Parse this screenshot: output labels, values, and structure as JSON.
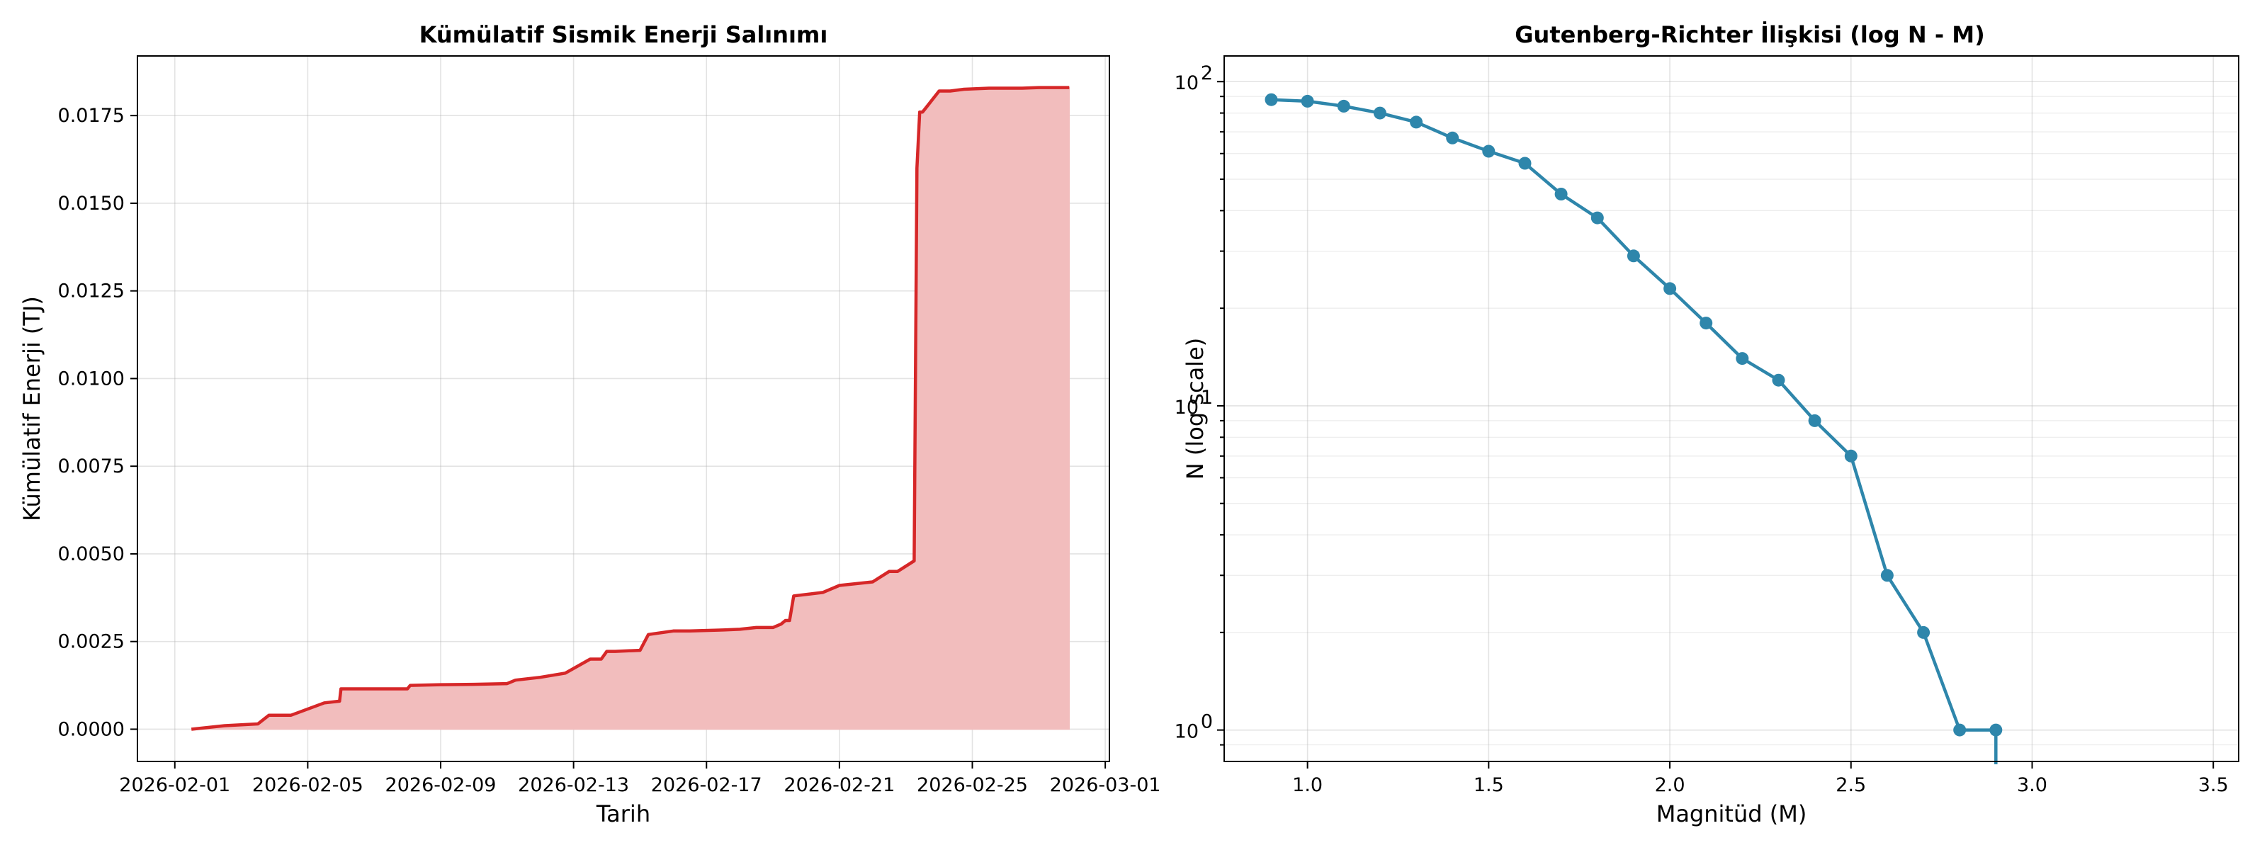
{
  "chart_data": [
    {
      "type": "area",
      "title": "Kümülatif Sismik Enerji Salınımı",
      "xlabel": "Tarih",
      "ylabel": "Kümülatif Enerji (TJ)",
      "x_ticks": [
        "2026-02-01",
        "2026-02-05",
        "2026-02-09",
        "2026-02-13",
        "2026-02-17",
        "2026-02-21",
        "2026-02-25",
        "2026-03-01"
      ],
      "y_ticks": [
        "0.0000",
        "0.0025",
        "0.0050",
        "0.0075",
        "0.0100",
        "0.0125",
        "0.0150",
        "0.0175"
      ],
      "xlim": [
        "2026-01-30T21:00",
        "2026-03-01T03:00"
      ],
      "ylim": [
        -0.00092,
        0.0192
      ],
      "grid": true,
      "line_color": "#d62728",
      "fill_color": "#f2bdbd",
      "series": [
        {
          "x": [
            "2026-02-01T12:00",
            "2026-02-02T12:00",
            "2026-02-03T12:00",
            "2026-02-03T20:00",
            "2026-02-04T12:00",
            "2026-02-05T12:00",
            "2026-02-05T23:00",
            "2026-02-06T00:00",
            "2026-02-08T00:00",
            "2026-02-08T02:00",
            "2026-02-09T00:00",
            "2026-02-10T00:00",
            "2026-02-11T00:00",
            "2026-02-11T06:00",
            "2026-02-12T00:00",
            "2026-02-12T18:00",
            "2026-02-13T12:00",
            "2026-02-13T20:00",
            "2026-02-14T00:00",
            "2026-02-14T06:00",
            "2026-02-15T00:00",
            "2026-02-15T06:00",
            "2026-02-16T00:00",
            "2026-02-16T12:00",
            "2026-02-17T12:00",
            "2026-02-18T00:00",
            "2026-02-18T12:00",
            "2026-02-19T00:00",
            "2026-02-19T06:00",
            "2026-02-19T09:00",
            "2026-02-19T12:00",
            "2026-02-19T15:00",
            "2026-02-20T12:00",
            "2026-02-20T18:00",
            "2026-02-21T00:00",
            "2026-02-22T00:00",
            "2026-02-22T12:00",
            "2026-02-22T18:00",
            "2026-02-23T06:00",
            "2026-02-23T08:00",
            "2026-02-23T10:00",
            "2026-02-23T12:00",
            "2026-02-23T14:00",
            "2026-02-24T00:00",
            "2026-02-24T08:00",
            "2026-02-24T18:00",
            "2026-02-25T12:00",
            "2026-02-26T12:00",
            "2026-02-27T00:00",
            "2026-02-27T12:00",
            "2026-02-27T22:00"
          ],
          "y": [
            0.0,
            0.0001,
            0.00015,
            0.0004,
            0.0004,
            0.00075,
            0.0008,
            0.00115,
            0.00115,
            0.00125,
            0.00127,
            0.00128,
            0.0013,
            0.0014,
            0.00148,
            0.0016,
            0.002,
            0.002,
            0.00222,
            0.00222,
            0.00225,
            0.0027,
            0.0028,
            0.0028,
            0.00283,
            0.00285,
            0.0029,
            0.0029,
            0.003,
            0.0031,
            0.0031,
            0.0038,
            0.0039,
            0.004,
            0.0041,
            0.0042,
            0.0045,
            0.0045,
            0.0048,
            0.016,
            0.0176,
            0.0176,
            0.0177,
            0.0182,
            0.0182,
            0.01825,
            0.01828,
            0.01828,
            0.0183,
            0.0183,
            0.0183
          ]
        }
      ]
    },
    {
      "type": "line",
      "title": "Gutenberg-Richter İlişkisi (log N - M)",
      "xlabel": "Magnitüd (M)",
      "ylabel": "N (log scale)",
      "y_scale": "log",
      "xlim": [
        0.77,
        3.57
      ],
      "ylim": [
        0.8,
        120
      ],
      "x_ticks": [
        "1.0",
        "1.5",
        "2.0",
        "2.5",
        "3.0",
        "3.5"
      ],
      "y_ticks": [
        "10",
        "10",
        "10"
      ],
      "y_tick_exponents": [
        "0",
        "1",
        "2"
      ],
      "grid": true,
      "line_color": "#2e86ab",
      "series": [
        {
          "x": [
            0.9,
            1.0,
            1.1,
            1.2,
            1.3,
            1.4,
            1.5,
            1.6,
            1.7,
            1.8,
            1.9,
            2.0,
            2.1,
            2.2,
            2.3,
            2.4,
            2.5,
            2.6,
            2.7,
            2.8,
            2.9,
            2.9
          ],
          "y": [
            88,
            87,
            84,
            80,
            75,
            67,
            61,
            56,
            45,
            38,
            29,
            23,
            18,
            14,
            12,
            9,
            7,
            3,
            2,
            1,
            1,
            0
          ]
        }
      ]
    }
  ]
}
